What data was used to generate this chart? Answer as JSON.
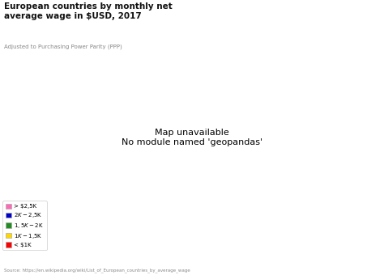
{
  "title": "European countries by monthly net\naverage wage in $USD, 2017",
  "subtitle": "Adjusted to Purchasing Power Parity (PPP)",
  "source": "Source: https://en.wikipedia.org/wiki/List_of_European_countries_by_average_wage",
  "background_color": "#ffffff",
  "legend": [
    {
      "label": "> $2,5K",
      "color": "#ff69b4"
    },
    {
      "label": "$2K - $2,5K",
      "color": "#0000cd"
    },
    {
      "label": "$1,5K - $2K",
      "color": "#228b22"
    },
    {
      "label": "$1K - $1,5K",
      "color": "#ffd700"
    },
    {
      "label": "< $1K",
      "color": "#ff0000"
    }
  ],
  "country_colors": {
    "ISL": "#ff69b4",
    "NOR": "#ff69b4",
    "SWE": "#ff69b4",
    "FIN": "#ff69b4",
    "DNK": "#ff69b4",
    "IRL": "#ff69b4",
    "GBR": "#ff69b4",
    "NLD": "#ff69b4",
    "DEU": "#ff69b4",
    "AUT": "#ff69b4",
    "LUX": "#ff69b4",
    "FRA": "#ff69b4",
    "CHE": "#0000cd",
    "BEL": "#0000cd",
    "ITA": "#0000cd",
    "SVN": "#0000cd",
    "MLT": "#0000cd",
    "VAT": "#0000cd",
    "SMR": "#0000cd",
    "HRV": "#0000cd",
    "POL": "#228b22",
    "CZE": "#228b22",
    "SVK": "#228b22",
    "HUN": "#228b22",
    "EST": "#228b22",
    "TUR": "#228b22",
    "GRC": "#228b22",
    "CYP": "#228b22",
    "PRT": "#ffd700",
    "ESP": "#ffd700",
    "RUS": "#ffd700",
    "BLR": "#ffd700",
    "LTU": "#ffd700",
    "LVA": "#ffd700",
    "ROU": "#ffd700",
    "BIH": "#ffd700",
    "SRB": "#ffd700",
    "BGR": "#ffd700",
    "MKD": "#ffd700",
    "ALB": "#ffd700",
    "MNE": "#ffd700",
    "MDA": "#ffd700",
    "AND": "#ffd700",
    "LIE": "#ffd700",
    "MCO": "#ffd700",
    "AZE": "#ffd700",
    "GEO": "#ff0000",
    "UKR": "#ff0000",
    "ARM": "#ff0000",
    "XKX": "#ff0000",
    "KOS": "#ff0000"
  }
}
